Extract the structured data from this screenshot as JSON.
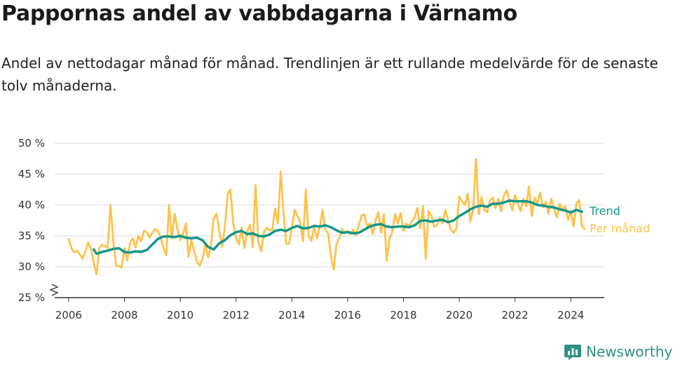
{
  "title": "Pappornas andel av vabbdagarna i Värnamo",
  "subtitle": "Andel av nettodagar månad för månad. Trendlinjen är ett rullande medelvärde för de senaste tolv månaderna.",
  "brand": "Newsworthy",
  "colors": {
    "trend": "#14978a",
    "monthly": "#ffc24a",
    "grid": "#d9d9d9",
    "axis": "#333333",
    "logo": "#2f8f83"
  },
  "chart_data": {
    "type": "line",
    "title": "Pappornas andel av vabbdagarna i Värnamo",
    "ylabel": "",
    "xlabel": "",
    "ylim": [
      25,
      50
    ],
    "y_axis_broken": true,
    "xlim": [
      2005.5,
      2025.2
    ],
    "yticks": [
      25,
      30,
      35,
      40,
      45,
      50
    ],
    "ytick_labels": [
      "25 %",
      "30 %",
      "35 %",
      "40 %",
      "45 %",
      "50 %"
    ],
    "xticks": [
      2006,
      2008,
      2010,
      2012,
      2014,
      2016,
      2018,
      2020,
      2022,
      2024
    ],
    "xtick_labels": [
      "2006",
      "2008",
      "2010",
      "2012",
      "2014",
      "2016",
      "2018",
      "2020",
      "2022",
      "2024"
    ],
    "grid": true,
    "legend": "right, at line ends",
    "series": [
      {
        "name": "Trend",
        "color": "#14978a",
        "points": [
          [
            2006.9,
            32.8
          ],
          [
            2007.0,
            32.1
          ],
          [
            2007.2,
            32.4
          ],
          [
            2007.4,
            32.6
          ],
          [
            2007.6,
            32.9
          ],
          [
            2007.8,
            33.0
          ],
          [
            2008.0,
            32.4
          ],
          [
            2008.2,
            32.3
          ],
          [
            2008.4,
            32.5
          ],
          [
            2008.6,
            32.4
          ],
          [
            2008.8,
            32.7
          ],
          [
            2009.0,
            33.6
          ],
          [
            2009.2,
            34.5
          ],
          [
            2009.4,
            34.9
          ],
          [
            2009.6,
            34.9
          ],
          [
            2009.8,
            34.8
          ],
          [
            2010.0,
            35.0
          ],
          [
            2010.2,
            34.7
          ],
          [
            2010.4,
            34.6
          ],
          [
            2010.6,
            34.7
          ],
          [
            2010.8,
            34.3
          ],
          [
            2011.0,
            33.2
          ],
          [
            2011.2,
            32.8
          ],
          [
            2011.4,
            33.8
          ],
          [
            2011.6,
            34.3
          ],
          [
            2011.8,
            35.1
          ],
          [
            2012.0,
            35.6
          ],
          [
            2012.2,
            35.8
          ],
          [
            2012.4,
            35.3
          ],
          [
            2012.6,
            35.4
          ],
          [
            2012.8,
            35.0
          ],
          [
            2013.0,
            34.9
          ],
          [
            2013.2,
            35.2
          ],
          [
            2013.4,
            35.8
          ],
          [
            2013.6,
            36.0
          ],
          [
            2013.8,
            35.8
          ],
          [
            2014.0,
            36.3
          ],
          [
            2014.2,
            36.6
          ],
          [
            2014.4,
            36.2
          ],
          [
            2014.6,
            36.3
          ],
          [
            2014.8,
            36.6
          ],
          [
            2015.0,
            36.5
          ],
          [
            2015.2,
            36.7
          ],
          [
            2015.4,
            36.4
          ],
          [
            2015.6,
            35.9
          ],
          [
            2015.8,
            35.5
          ],
          [
            2016.0,
            35.6
          ],
          [
            2016.2,
            35.4
          ],
          [
            2016.4,
            35.5
          ],
          [
            2016.6,
            36.0
          ],
          [
            2016.8,
            36.5
          ],
          [
            2017.0,
            36.8
          ],
          [
            2017.2,
            36.9
          ],
          [
            2017.4,
            36.5
          ],
          [
            2017.6,
            36.4
          ],
          [
            2017.8,
            36.5
          ],
          [
            2018.0,
            36.5
          ],
          [
            2018.2,
            36.4
          ],
          [
            2018.4,
            36.7
          ],
          [
            2018.6,
            37.4
          ],
          [
            2018.8,
            37.5
          ],
          [
            2019.0,
            37.3
          ],
          [
            2019.2,
            37.5
          ],
          [
            2019.4,
            37.6
          ],
          [
            2019.6,
            37.2
          ],
          [
            2019.8,
            37.5
          ],
          [
            2020.0,
            38.2
          ],
          [
            2020.2,
            38.7
          ],
          [
            2020.4,
            39.3
          ],
          [
            2020.6,
            39.7
          ],
          [
            2020.8,
            39.9
          ],
          [
            2021.0,
            39.7
          ],
          [
            2021.2,
            40.2
          ],
          [
            2021.4,
            40.2
          ],
          [
            2021.6,
            40.4
          ],
          [
            2021.8,
            40.7
          ],
          [
            2022.0,
            40.6
          ],
          [
            2022.2,
            40.6
          ],
          [
            2022.4,
            40.6
          ],
          [
            2022.6,
            40.4
          ],
          [
            2022.8,
            40.0
          ],
          [
            2023.0,
            39.9
          ],
          [
            2023.2,
            39.7
          ],
          [
            2023.4,
            39.6
          ],
          [
            2023.6,
            39.3
          ],
          [
            2023.8,
            39.1
          ],
          [
            2024.0,
            38.8
          ],
          [
            2024.2,
            39.2
          ],
          [
            2024.4,
            38.9
          ]
        ]
      },
      {
        "name": "Per månad",
        "color": "#ffc24a",
        "points": [
          [
            2006.0,
            34.5
          ],
          [
            2006.1,
            33.0
          ],
          [
            2006.2,
            32.3
          ],
          [
            2006.3,
            32.6
          ],
          [
            2006.4,
            32.0
          ],
          [
            2006.5,
            31.3
          ],
          [
            2006.6,
            32.5
          ],
          [
            2006.7,
            33.9
          ],
          [
            2006.8,
            32.9
          ],
          [
            2006.9,
            30.6
          ],
          [
            2007.0,
            28.8
          ],
          [
            2007.1,
            33.1
          ],
          [
            2007.2,
            33.5
          ],
          [
            2007.3,
            33.4
          ],
          [
            2007.4,
            33.0
          ],
          [
            2007.5,
            40.0
          ],
          [
            2007.6,
            34.2
          ],
          [
            2007.7,
            30.2
          ],
          [
            2007.8,
            30.1
          ],
          [
            2007.9,
            29.9
          ],
          [
            2008.0,
            33.0
          ],
          [
            2008.1,
            31.0
          ],
          [
            2008.2,
            33.9
          ],
          [
            2008.3,
            34.6
          ],
          [
            2008.4,
            33.1
          ],
          [
            2008.5,
            35.0
          ],
          [
            2008.6,
            34.1
          ],
          [
            2008.7,
            35.8
          ],
          [
            2008.8,
            35.6
          ],
          [
            2008.9,
            34.7
          ],
          [
            2009.0,
            35.5
          ],
          [
            2009.1,
            36.1
          ],
          [
            2009.2,
            35.8
          ],
          [
            2009.3,
            34.7
          ],
          [
            2009.4,
            33.0
          ],
          [
            2009.5,
            31.9
          ],
          [
            2009.6,
            40.0
          ],
          [
            2009.7,
            34.6
          ],
          [
            2009.8,
            38.6
          ],
          [
            2009.9,
            36.1
          ],
          [
            2010.0,
            34.3
          ],
          [
            2010.1,
            35.3
          ],
          [
            2010.2,
            37.0
          ],
          [
            2010.3,
            31.6
          ],
          [
            2010.4,
            34.3
          ],
          [
            2010.5,
            32.5
          ],
          [
            2010.6,
            30.7
          ],
          [
            2010.7,
            30.2
          ],
          [
            2010.8,
            31.3
          ],
          [
            2010.9,
            33.6
          ],
          [
            2011.0,
            31.5
          ],
          [
            2011.1,
            33.5
          ],
          [
            2011.2,
            37.8
          ],
          [
            2011.3,
            38.6
          ],
          [
            2011.4,
            35.8
          ],
          [
            2011.5,
            33.2
          ],
          [
            2011.6,
            36.5
          ],
          [
            2011.7,
            41.7
          ],
          [
            2011.8,
            42.5
          ],
          [
            2011.9,
            37.0
          ],
          [
            2012.0,
            34.7
          ],
          [
            2012.1,
            33.6
          ],
          [
            2012.2,
            36.3
          ],
          [
            2012.3,
            33.0
          ],
          [
            2012.4,
            35.8
          ],
          [
            2012.5,
            36.8
          ],
          [
            2012.6,
            33.2
          ],
          [
            2012.7,
            43.2
          ],
          [
            2012.8,
            34.0
          ],
          [
            2012.9,
            32.5
          ],
          [
            2013.0,
            35.6
          ],
          [
            2013.1,
            36.3
          ],
          [
            2013.2,
            35.9
          ],
          [
            2013.3,
            36.0
          ],
          [
            2013.4,
            39.4
          ],
          [
            2013.5,
            37.0
          ],
          [
            2013.6,
            45.4
          ],
          [
            2013.7,
            39.0
          ],
          [
            2013.8,
            33.7
          ],
          [
            2013.9,
            33.7
          ],
          [
            2014.0,
            36.3
          ],
          [
            2014.1,
            39.2
          ],
          [
            2014.2,
            38.2
          ],
          [
            2014.3,
            37.2
          ],
          [
            2014.4,
            34.1
          ],
          [
            2014.5,
            42.5
          ],
          [
            2014.6,
            35.1
          ],
          [
            2014.7,
            34.2
          ],
          [
            2014.8,
            36.5
          ],
          [
            2014.9,
            34.6
          ],
          [
            2015.0,
            36.4
          ],
          [
            2015.1,
            39.2
          ],
          [
            2015.2,
            36.0
          ],
          [
            2015.3,
            35.4
          ],
          [
            2015.4,
            31.8
          ],
          [
            2015.5,
            29.5
          ],
          [
            2015.6,
            33.6
          ],
          [
            2015.7,
            34.6
          ],
          [
            2015.8,
            36.1
          ],
          [
            2015.9,
            35.4
          ],
          [
            2016.0,
            35.8
          ],
          [
            2016.1,
            35.3
          ],
          [
            2016.2,
            36.0
          ],
          [
            2016.3,
            35.1
          ],
          [
            2016.4,
            36.6
          ],
          [
            2016.5,
            38.3
          ],
          [
            2016.6,
            38.5
          ],
          [
            2016.7,
            36.5
          ],
          [
            2016.8,
            37.0
          ],
          [
            2016.9,
            35.3
          ],
          [
            2017.0,
            37.5
          ],
          [
            2017.1,
            38.8
          ],
          [
            2017.2,
            35.5
          ],
          [
            2017.3,
            38.5
          ],
          [
            2017.4,
            31.0
          ],
          [
            2017.5,
            34.6
          ],
          [
            2017.6,
            35.6
          ],
          [
            2017.7,
            38.5
          ],
          [
            2017.8,
            37.0
          ],
          [
            2017.9,
            38.7
          ],
          [
            2018.0,
            35.8
          ],
          [
            2018.1,
            37.0
          ],
          [
            2018.2,
            36.5
          ],
          [
            2018.3,
            37.4
          ],
          [
            2018.4,
            38.0
          ],
          [
            2018.5,
            39.5
          ],
          [
            2018.6,
            36.2
          ],
          [
            2018.7,
            39.8
          ],
          [
            2018.8,
            31.3
          ],
          [
            2018.9,
            39.0
          ],
          [
            2019.0,
            38.3
          ],
          [
            2019.1,
            36.5
          ],
          [
            2019.2,
            36.7
          ],
          [
            2019.3,
            38.0
          ],
          [
            2019.4,
            37.0
          ],
          [
            2019.5,
            39.2
          ],
          [
            2019.6,
            37.5
          ],
          [
            2019.7,
            36.0
          ],
          [
            2019.8,
            35.5
          ],
          [
            2019.9,
            36.2
          ],
          [
            2020.0,
            41.4
          ],
          [
            2020.1,
            40.6
          ],
          [
            2020.2,
            40.0
          ],
          [
            2020.3,
            41.8
          ],
          [
            2020.4,
            37.3
          ],
          [
            2020.5,
            39.3
          ],
          [
            2020.6,
            47.5
          ],
          [
            2020.7,
            38.5
          ],
          [
            2020.8,
            41.3
          ],
          [
            2020.9,
            39.2
          ],
          [
            2021.0,
            38.8
          ],
          [
            2021.1,
            40.7
          ],
          [
            2021.2,
            41.2
          ],
          [
            2021.3,
            39.5
          ],
          [
            2021.4,
            41.0
          ],
          [
            2021.5,
            39.0
          ],
          [
            2021.6,
            41.5
          ],
          [
            2021.7,
            42.4
          ],
          [
            2021.8,
            40.6
          ],
          [
            2021.9,
            39.1
          ],
          [
            2022.0,
            41.6
          ],
          [
            2022.1,
            40.2
          ],
          [
            2022.2,
            39.0
          ],
          [
            2022.3,
            41.0
          ],
          [
            2022.4,
            39.8
          ],
          [
            2022.5,
            43.0
          ],
          [
            2022.6,
            38.2
          ],
          [
            2022.7,
            41.2
          ],
          [
            2022.8,
            40.3
          ],
          [
            2022.9,
            42.0
          ],
          [
            2023.0,
            39.6
          ],
          [
            2023.1,
            40.5
          ],
          [
            2023.2,
            38.6
          ],
          [
            2023.3,
            41.0
          ],
          [
            2023.4,
            39.3
          ],
          [
            2023.5,
            38.0
          ],
          [
            2023.6,
            40.2
          ],
          [
            2023.7,
            39.2
          ],
          [
            2023.8,
            39.8
          ],
          [
            2023.9,
            37.6
          ],
          [
            2024.0,
            39.0
          ],
          [
            2024.1,
            36.5
          ],
          [
            2024.2,
            40.2
          ],
          [
            2024.3,
            40.8
          ],
          [
            2024.4,
            36.6
          ],
          [
            2024.5,
            36.1
          ]
        ]
      }
    ]
  }
}
